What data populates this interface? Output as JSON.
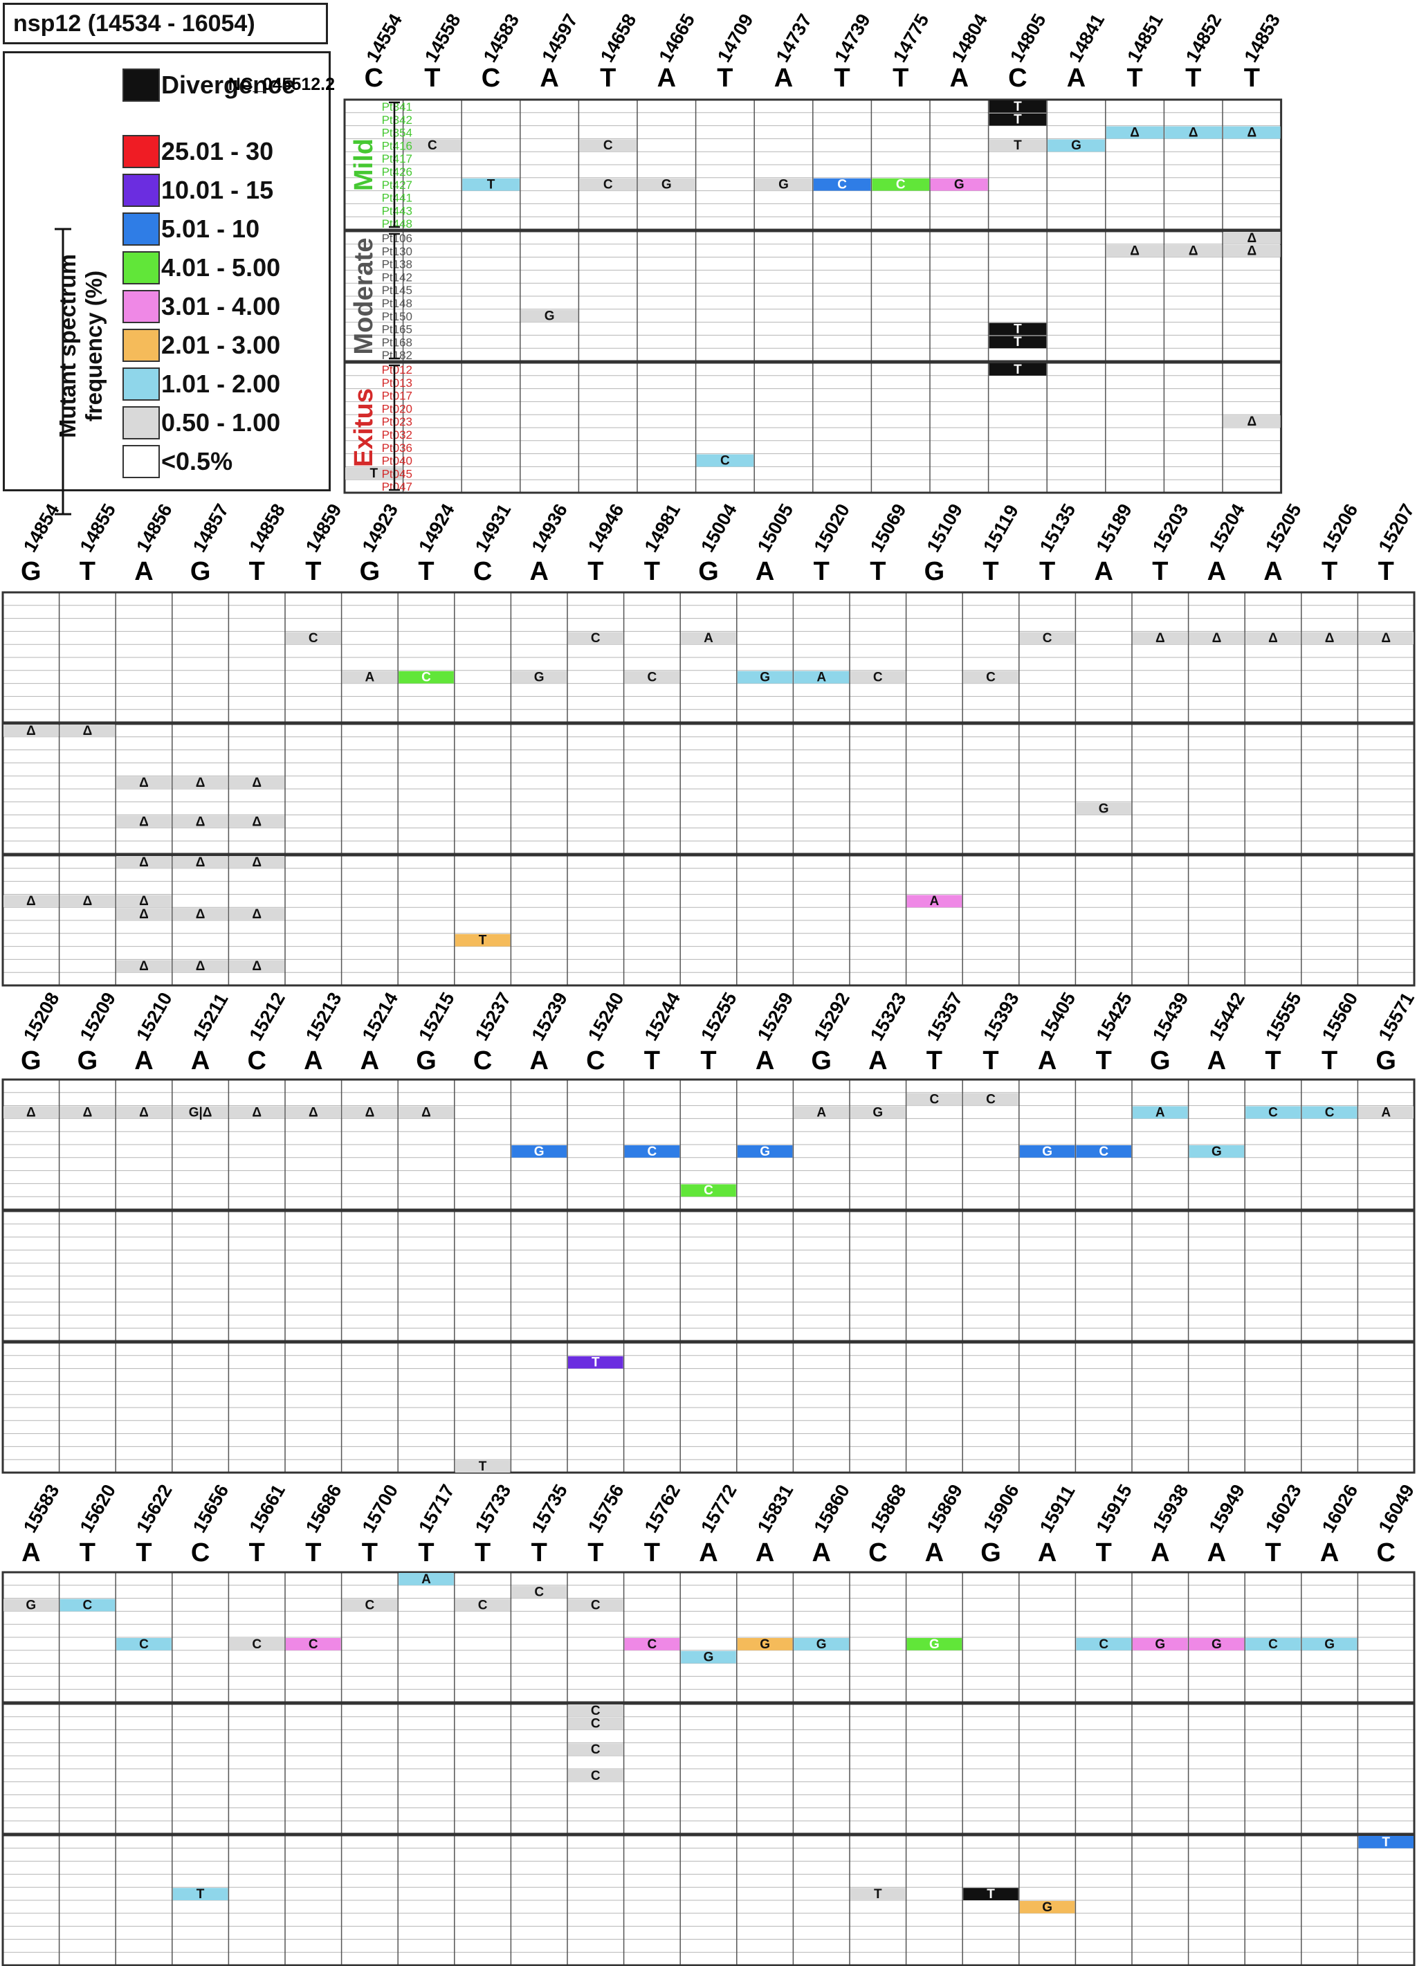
{
  "title": "nsp12 (14534 - 16054)",
  "reference_label": "NC_045512.2",
  "legend": {
    "divergence_label": "Divergence",
    "divergence_color": "#111111",
    "axis_title_line1": "Mutant spectrum",
    "axis_title_line2": "frequency (%)",
    "ranges": [
      {
        "label": "25.01 - 30",
        "color": "#ef1c24"
      },
      {
        "label": "10.01 - 15",
        "color": "#6b2de0"
      },
      {
        "label": "5.01 - 10",
        "color": "#2f7de6"
      },
      {
        "label": "4.01 - 5.00",
        "color": "#61e639"
      },
      {
        "label": "3.01 - 4.00",
        "color": "#ef88e6"
      },
      {
        "label": "2.01 - 3.00",
        "color": "#f5bb5a"
      },
      {
        "label": "1.01 - 2.00",
        "color": "#8fd6ea"
      },
      {
        "label": "0.50 - 1.00",
        "color": "#d9d9d9"
      },
      {
        "label": "<0.5%",
        "color": "#ffffff"
      }
    ]
  },
  "groups": [
    {
      "name": "Mild",
      "color": "#46c832",
      "patients": [
        "Pt341",
        "Pt342",
        "Pt354",
        "Pt416",
        "Pt417",
        "Pt426",
        "Pt427",
        "Pt441",
        "Pt443",
        "Pt448"
      ]
    },
    {
      "name": "Moderate",
      "color": "#555555",
      "patients": [
        "Pt106",
        "Pt130",
        "Pt138",
        "Pt142",
        "Pt145",
        "Pt148",
        "Pt150",
        "Pt165",
        "Pt168",
        "Pt182"
      ]
    },
    {
      "name": "Exitus",
      "color": "#d42a2a",
      "patients": [
        "Pt012",
        "Pt013",
        "Pt017",
        "Pt020",
        "Pt023",
        "Pt032",
        "Pt036",
        "Pt040",
        "Pt045",
        "Pt047"
      ]
    }
  ],
  "blocks": [
    {
      "positions": [
        "14554",
        "14558",
        "14583",
        "14597",
        "14658",
        "14665",
        "14709",
        "14737",
        "14739",
        "14775",
        "14804",
        "14805",
        "14841",
        "14851",
        "14852",
        "14853"
      ],
      "ref": [
        "C",
        "T",
        "C",
        "A",
        "T",
        "A",
        "T",
        "A",
        "T",
        "T",
        "A",
        "C",
        "A",
        "T",
        "T",
        "T"
      ],
      "cells": [
        [
          11,
          0,
          "T",
          "D"
        ],
        [
          11,
          1,
          "T",
          "D"
        ],
        [
          13,
          2,
          "Δ",
          "L"
        ],
        [
          14,
          2,
          "Δ",
          "L"
        ],
        [
          15,
          2,
          "Δ",
          "L"
        ],
        [
          1,
          3,
          "C",
          "G"
        ],
        [
          4,
          3,
          "C",
          "G"
        ],
        [
          11,
          3,
          "T",
          "G"
        ],
        [
          12,
          3,
          "G",
          "L"
        ],
        [
          2,
          6,
          "T",
          "L"
        ],
        [
          4,
          6,
          "C",
          "G"
        ],
        [
          5,
          6,
          "G",
          "G"
        ],
        [
          7,
          6,
          "G",
          "G"
        ],
        [
          8,
          6,
          "C",
          "B"
        ],
        [
          9,
          6,
          "C",
          "N"
        ],
        [
          10,
          6,
          "G",
          "P"
        ],
        [
          15,
          10,
          "Δ",
          "G"
        ],
        [
          13,
          11,
          "Δ",
          "G"
        ],
        [
          14,
          11,
          "Δ",
          "G"
        ],
        [
          15,
          11,
          "Δ",
          "G"
        ],
        [
          3,
          16,
          "G",
          "G"
        ],
        [
          11,
          17,
          "T",
          "D"
        ],
        [
          11,
          18,
          "T",
          "D"
        ],
        [
          11,
          20,
          "T",
          "D"
        ],
        [
          15,
          24,
          "Δ",
          "G"
        ],
        [
          6,
          27,
          "C",
          "L"
        ],
        [
          0,
          28,
          "T",
          "G"
        ]
      ]
    },
    {
      "positions": [
        "14854",
        "14855",
        "14856",
        "14857",
        "14858",
        "14859",
        "14923",
        "14924",
        "14931",
        "14936",
        "14946",
        "14981",
        "15004",
        "15005",
        "15020",
        "15069",
        "15109",
        "15119",
        "15135",
        "15189",
        "15203",
        "15204",
        "15205",
        "15206",
        "15207"
      ],
      "ref": [
        "G",
        "T",
        "A",
        "G",
        "T",
        "T",
        "G",
        "T",
        "C",
        "A",
        "T",
        "T",
        "G",
        "A",
        "T",
        "T",
        "G",
        "T",
        "T",
        "A",
        "T",
        "A",
        "A",
        "T",
        "T"
      ],
      "cells": [
        [
          5,
          3,
          "C",
          "G"
        ],
        [
          10,
          3,
          "C",
          "G"
        ],
        [
          12,
          3,
          "A",
          "G"
        ],
        [
          18,
          3,
          "C",
          "G"
        ],
        [
          20,
          3,
          "Δ",
          "G"
        ],
        [
          21,
          3,
          "Δ",
          "G"
        ],
        [
          22,
          3,
          "Δ",
          "G"
        ],
        [
          23,
          3,
          "Δ",
          "G"
        ],
        [
          24,
          3,
          "Δ",
          "G"
        ],
        [
          6,
          6,
          "A",
          "G"
        ],
        [
          7,
          6,
          "C",
          "N"
        ],
        [
          9,
          6,
          "G",
          "G"
        ],
        [
          11,
          6,
          "C",
          "G"
        ],
        [
          13,
          6,
          "G",
          "L"
        ],
        [
          14,
          6,
          "A",
          "L"
        ],
        [
          15,
          6,
          "C",
          "G"
        ],
        [
          17,
          6,
          "C",
          "G"
        ],
        [
          0,
          10,
          "Δ",
          "G"
        ],
        [
          1,
          10,
          "Δ",
          "G"
        ],
        [
          2,
          14,
          "Δ",
          "G"
        ],
        [
          3,
          14,
          "Δ",
          "G"
        ],
        [
          4,
          14,
          "Δ",
          "G"
        ],
        [
          2,
          17,
          "Δ",
          "G"
        ],
        [
          3,
          17,
          "Δ",
          "G"
        ],
        [
          4,
          17,
          "Δ",
          "G"
        ],
        [
          19,
          16,
          "G",
          "G"
        ],
        [
          2,
          20,
          "Δ",
          "G"
        ],
        [
          3,
          20,
          "Δ",
          "G"
        ],
        [
          4,
          20,
          "Δ",
          "G"
        ],
        [
          0,
          23,
          "Δ",
          "G"
        ],
        [
          1,
          23,
          "Δ",
          "G"
        ],
        [
          2,
          23,
          "Δ",
          "G"
        ],
        [
          16,
          23,
          "A",
          "P"
        ],
        [
          2,
          24,
          "Δ",
          "G"
        ],
        [
          3,
          24,
          "Δ",
          "G"
        ],
        [
          4,
          24,
          "Δ",
          "G"
        ],
        [
          8,
          26,
          "T",
          "O"
        ],
        [
          2,
          28,
          "Δ",
          "G"
        ],
        [
          3,
          28,
          "Δ",
          "G"
        ],
        [
          4,
          28,
          "Δ",
          "G"
        ]
      ]
    },
    {
      "positions": [
        "15208",
        "15209",
        "15210",
        "15211",
        "15212",
        "15213",
        "15214",
        "15215",
        "15237",
        "15239",
        "15240",
        "15244",
        "15255",
        "15259",
        "15292",
        "15323",
        "15357",
        "15393",
        "15405",
        "15425",
        "15439",
        "15442",
        "15555",
        "15560",
        "15571"
      ],
      "ref": [
        "G",
        "G",
        "A",
        "A",
        "C",
        "A",
        "A",
        "G",
        "C",
        "A",
        "C",
        "T",
        "T",
        "A",
        "G",
        "A",
        "T",
        "T",
        "A",
        "T",
        "G",
        "A",
        "T",
        "T",
        "G"
      ],
      "cells": [
        [
          0,
          2,
          "Δ",
          "G"
        ],
        [
          1,
          2,
          "Δ",
          "G"
        ],
        [
          2,
          2,
          "Δ",
          "G"
        ],
        [
          3,
          2,
          "G|Δ",
          "G"
        ],
        [
          4,
          2,
          "Δ",
          "G"
        ],
        [
          5,
          2,
          "Δ",
          "G"
        ],
        [
          6,
          2,
          "Δ",
          "G"
        ],
        [
          7,
          2,
          "Δ",
          "G"
        ],
        [
          14,
          2,
          "A",
          "G"
        ],
        [
          15,
          2,
          "G",
          "G"
        ],
        [
          16,
          1,
          "C",
          "G"
        ],
        [
          17,
          1,
          "C",
          "G"
        ],
        [
          20,
          2,
          "A",
          "L"
        ],
        [
          22,
          2,
          "C",
          "L"
        ],
        [
          23,
          2,
          "C",
          "L"
        ],
        [
          24,
          2,
          "A",
          "G"
        ],
        [
          9,
          5,
          "G",
          "B"
        ],
        [
          11,
          5,
          "C",
          "B"
        ],
        [
          13,
          5,
          "G",
          "B"
        ],
        [
          18,
          5,
          "G",
          "B"
        ],
        [
          19,
          5,
          "C",
          "B"
        ],
        [
          21,
          5,
          "G",
          "L"
        ],
        [
          12,
          8,
          "C",
          "N"
        ],
        [
          10,
          21,
          "T",
          "V"
        ],
        [
          8,
          29,
          "T",
          "G"
        ]
      ]
    },
    {
      "positions": [
        "15583",
        "15620",
        "15622",
        "15656",
        "15661",
        "15686",
        "15700",
        "15717",
        "15733",
        "15735",
        "15756",
        "15762",
        "15772",
        "15831",
        "15860",
        "15868",
        "15869",
        "15906",
        "15911",
        "15915",
        "15938",
        "15949",
        "16023",
        "16026",
        "16049"
      ],
      "ref": [
        "A",
        "T",
        "T",
        "C",
        "T",
        "T",
        "T",
        "T",
        "T",
        "T",
        "T",
        "T",
        "A",
        "A",
        "A",
        "C",
        "A",
        "G",
        "A",
        "T",
        "A",
        "A",
        "T",
        "A",
        "C"
      ],
      "cells": [
        [
          7,
          0,
          "A",
          "L"
        ],
        [
          9,
          1,
          "C",
          "G"
        ],
        [
          0,
          2,
          "G",
          "G"
        ],
        [
          1,
          2,
          "C",
          "L"
        ],
        [
          6,
          2,
          "C",
          "G"
        ],
        [
          8,
          2,
          "C",
          "G"
        ],
        [
          10,
          2,
          "C",
          "G"
        ],
        [
          2,
          5,
          "C",
          "L"
        ],
        [
          4,
          5,
          "C",
          "G"
        ],
        [
          5,
          5,
          "C",
          "P"
        ],
        [
          11,
          5,
          "C",
          "P"
        ],
        [
          13,
          5,
          "G",
          "O"
        ],
        [
          14,
          5,
          "G",
          "L"
        ],
        [
          16,
          5,
          "G",
          "N"
        ],
        [
          19,
          5,
          "C",
          "L"
        ],
        [
          20,
          5,
          "G",
          "P"
        ],
        [
          21,
          5,
          "G",
          "P"
        ],
        [
          22,
          5,
          "C",
          "L"
        ],
        [
          23,
          5,
          "G",
          "L"
        ],
        [
          12,
          6,
          "G",
          "L"
        ],
        [
          10,
          10,
          "C",
          "G"
        ],
        [
          10,
          11,
          "C",
          "G"
        ],
        [
          10,
          13,
          "C",
          "G"
        ],
        [
          10,
          15,
          "C",
          "G"
        ],
        [
          24,
          20,
          "T",
          "B"
        ],
        [
          3,
          24,
          "T",
          "L"
        ],
        [
          15,
          24,
          "T",
          "G"
        ],
        [
          17,
          24,
          "T",
          "D"
        ],
        [
          18,
          25,
          "G",
          "O"
        ]
      ]
    }
  ]
}
